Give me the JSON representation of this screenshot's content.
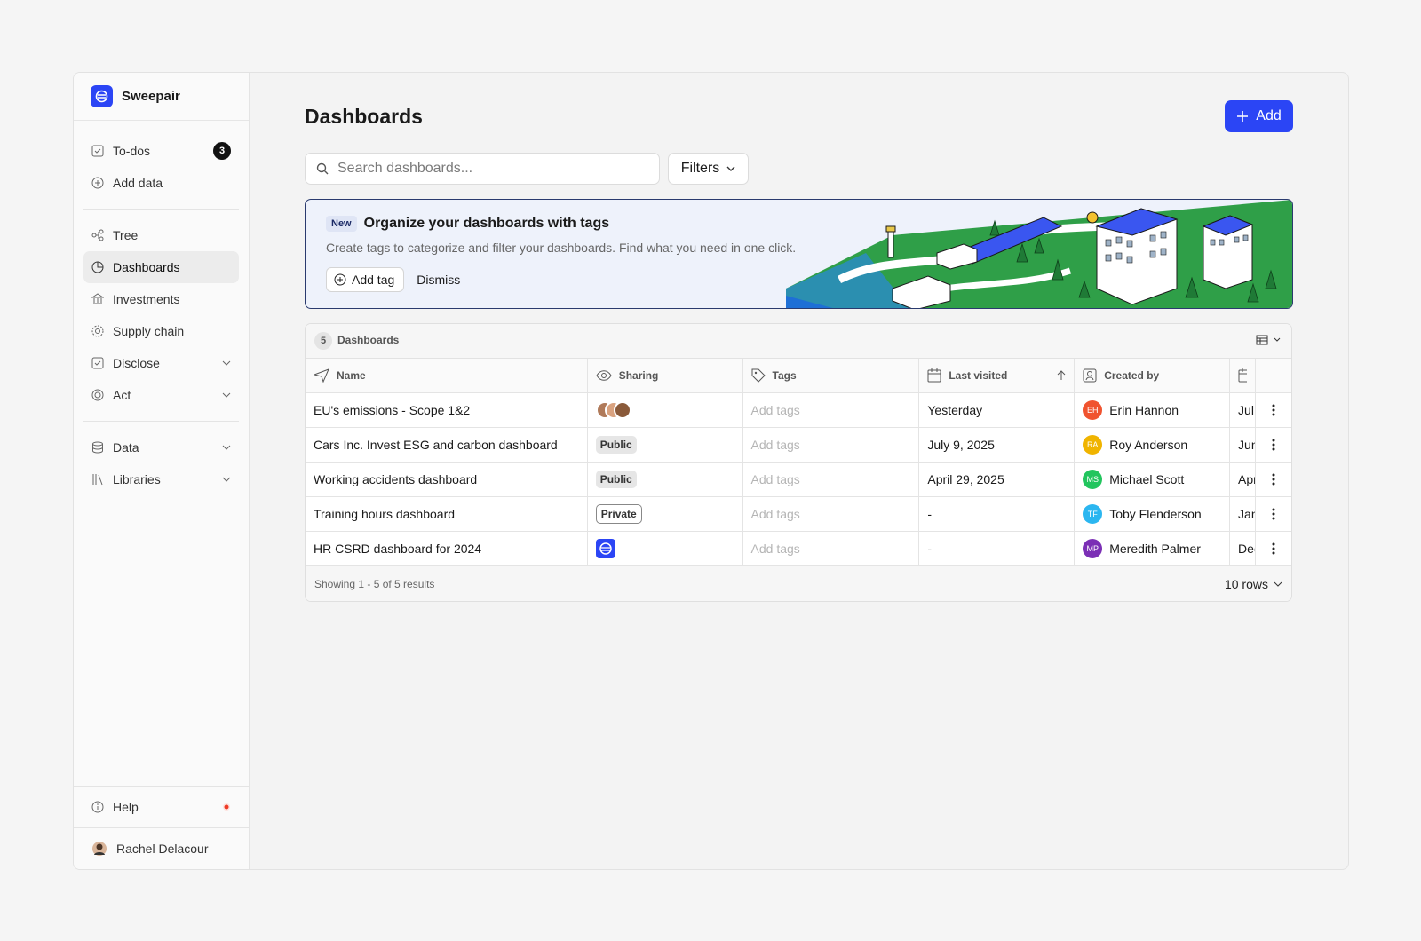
{
  "sidebar": {
    "brand": "Sweepair",
    "nav_top": [
      {
        "label": "To-dos",
        "badge": "3"
      },
      {
        "label": "Add data"
      }
    ],
    "nav_main": [
      "Tree",
      "Dashboards",
      "Investments",
      "Supply chain",
      "Disclose",
      "Act"
    ],
    "nav_more": [
      "Data",
      "Libraries"
    ],
    "help": "Help",
    "user": "Rachel Delacour"
  },
  "header": {
    "title": "Dashboards",
    "add_button": "Add"
  },
  "search": {
    "placeholder": "Search dashboards...",
    "filters": "Filters"
  },
  "banner": {
    "badge": "New",
    "title": "Organize your dashboards with tags",
    "text": "Create tags to categorize and filter your dashboards. Find what you need in one click.",
    "add_tag": "Add tag",
    "dismiss": "Dismiss"
  },
  "table": {
    "count": "5",
    "label": "Dashboards",
    "columns": [
      "Name",
      "Sharing",
      "Tags",
      "Last visited",
      "Created by"
    ],
    "rows": [
      {
        "name": "EU's emissions - Scope 1&2",
        "sharing": null,
        "tags": "Add tags",
        "last_visited": "Yesterday",
        "initials": "EH",
        "creator": "Erin Hannon",
        "created": "Jul"
      },
      {
        "name": "Cars Inc. Invest ESG and carbon dashboard",
        "sharing": "Public",
        "tags": "Add tags",
        "last_visited": "July 9, 2025",
        "initials": "RA",
        "creator": "Roy Anderson",
        "created": "Jun"
      },
      {
        "name": "Working accidents dashboard",
        "sharing": "Public",
        "tags": "Add tags",
        "last_visited": "April 29, 2025",
        "initials": "MS",
        "creator": "Michael Scott",
        "created": "Apr"
      },
      {
        "name": "Training hours dashboard",
        "sharing": "Private",
        "tags": "Add tags",
        "last_visited": "-",
        "initials": "TF",
        "creator": "Toby Flenderson",
        "created": "Jan"
      },
      {
        "name": "HR CSRD dashboard for 2024",
        "sharing": null,
        "tags": "Add tags",
        "last_visited": "-",
        "initials": "MP",
        "creator": "Meredith Palmer",
        "created": "Dec"
      }
    ],
    "footer": "Showing 1 - 5 of 5 results",
    "rows_per_page": "10 rows"
  }
}
